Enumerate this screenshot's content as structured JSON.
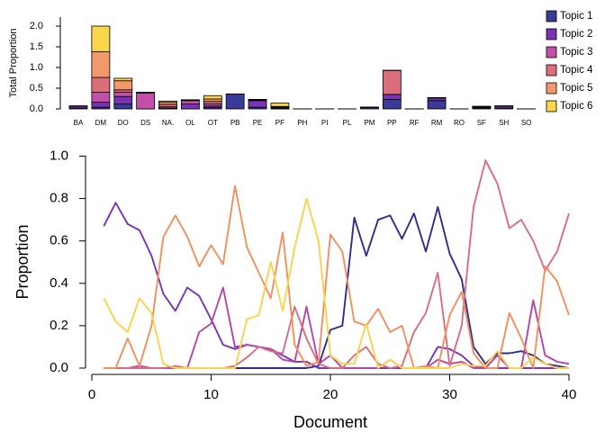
{
  "chart_data": [
    {
      "type": "bar",
      "stacked": true,
      "ylabel": "Total Proportion",
      "xlabel": "",
      "ylim": [
        0,
        2.2
      ],
      "yticks": [
        "0.0",
        "0.5",
        "1.0",
        "1.5",
        "2.0"
      ],
      "categories": [
        "BA",
        "DM",
        "DO",
        "DS",
        "NA.",
        "OL",
        "OT",
        "PB",
        "PE",
        "PF",
        "PH",
        "PI",
        "PL",
        "PM",
        "PP",
        "RF",
        "RM",
        "RO",
        "SF",
        "SH",
        "SO"
      ],
      "series": [
        {
          "name": "Topic 1",
          "color": "#3A3A98",
          "values": [
            0.02,
            0.04,
            0.12,
            0,
            0,
            0,
            0.03,
            0.36,
            0.04,
            0,
            0,
            0,
            0,
            0.03,
            0.23,
            0,
            0.2,
            0,
            0.02,
            0.02,
            0
          ]
        },
        {
          "name": "Topic 2",
          "color": "#7B33B5",
          "values": [
            0.05,
            0.12,
            0.18,
            0,
            0.02,
            0.12,
            0.04,
            0,
            0.16,
            0.01,
            0,
            0,
            0,
            0.01,
            0.12,
            0,
            0.06,
            0,
            0.02,
            0.05,
            0
          ]
        },
        {
          "name": "Topic 3",
          "color": "#C050A8",
          "values": [
            0,
            0.24,
            0.1,
            0.38,
            0.03,
            0.08,
            0.05,
            0,
            0.02,
            0.01,
            0,
            0,
            0,
            0,
            0,
            0,
            0.01,
            0,
            0.01,
            0,
            0
          ]
        },
        {
          "name": "Topic 4",
          "color": "#DC6E7C",
          "values": [
            0,
            0.36,
            0.06,
            0,
            0.06,
            0.02,
            0.06,
            0,
            0.01,
            0.02,
            0,
            0,
            0,
            0,
            0.58,
            0,
            0,
            0,
            0.01,
            0,
            0
          ]
        },
        {
          "name": "Topic 5",
          "color": "#F2996B",
          "values": [
            0,
            0.62,
            0.22,
            0.02,
            0.05,
            0,
            0.06,
            0,
            0,
            0.02,
            0,
            0,
            0,
            0,
            0,
            0,
            0,
            0,
            0,
            0,
            0
          ]
        },
        {
          "name": "Topic 6",
          "color": "#F9D64C",
          "values": [
            0,
            0.62,
            0.06,
            0,
            0.03,
            0,
            0.08,
            0,
            0,
            0.08,
            0,
            0,
            0,
            0,
            0,
            0,
            0,
            0,
            0,
            0,
            0
          ]
        }
      ]
    },
    {
      "type": "line",
      "xlabel": "Document",
      "ylabel": "Proportion",
      "xlim": [
        0,
        41
      ],
      "ylim": [
        0,
        1.03
      ],
      "xticks": [
        "0",
        "10",
        "20",
        "30",
        "40"
      ],
      "yticks": [
        "0.0",
        "0.2",
        "0.4",
        "0.6",
        "0.8",
        "1.0"
      ],
      "x": [
        1,
        2,
        3,
        4,
        5,
        6,
        7,
        8,
        9,
        10,
        11,
        12,
        13,
        14,
        15,
        16,
        17,
        18,
        19,
        20,
        21,
        22,
        23,
        24,
        25,
        26,
        27,
        28,
        29,
        30,
        31,
        32,
        33,
        34,
        35,
        36,
        37,
        38,
        39,
        40
      ],
      "series": [
        {
          "name": "Topic 1",
          "color": "#2E2E8C",
          "values": [
            0,
            0,
            0,
            0,
            0,
            0,
            0,
            0,
            0,
            0,
            0,
            0,
            0,
            0,
            0,
            0,
            0,
            0,
            0.01,
            0.18,
            0.2,
            0.71,
            0.53,
            0.7,
            0.72,
            0.61,
            0.73,
            0.55,
            0.76,
            0.54,
            0.42,
            0.1,
            0.02,
            0.07,
            0.07,
            0.08,
            0.06,
            0.02,
            0.01,
            0
          ]
        },
        {
          "name": "Topic 2",
          "color": "#7B33B5",
          "values": [
            0.67,
            0.78,
            0.68,
            0.65,
            0.53,
            0.35,
            0.27,
            0.38,
            0.34,
            0.23,
            0.11,
            0.09,
            0.11,
            0.1,
            0.09,
            0.06,
            0.03,
            0.03,
            0,
            0,
            0,
            0,
            0,
            0,
            0,
            0,
            0,
            0,
            0.1,
            0.09,
            0.06,
            0.01,
            0,
            0,
            0,
            0,
            0,
            0,
            0,
            0
          ]
        },
        {
          "name": "Topic 3",
          "color": "#B544A8",
          "values": [
            0,
            0,
            0,
            0.01,
            0,
            0,
            0,
            0,
            0.17,
            0.21,
            0.38,
            0.1,
            0.11,
            0.1,
            0.09,
            0.04,
            0.03,
            0.29,
            0.02,
            0.06,
            0,
            0,
            0,
            0,
            0.04,
            0,
            0,
            0,
            0.04,
            0.02,
            0.03,
            0,
            0,
            0.06,
            0,
            0,
            0.32,
            0.06,
            0.03,
            0.02
          ]
        },
        {
          "name": "Topic 4",
          "color": "#D66E80",
          "values": [
            0,
            0,
            0,
            0,
            0,
            0,
            0.01,
            0,
            0,
            0,
            0,
            0.01,
            0.05,
            0.1,
            0.08,
            0.07,
            0.29,
            0.14,
            0.02,
            0,
            0,
            0.06,
            0.1,
            0.02,
            0,
            0.01,
            0.17,
            0.26,
            0.45,
            0.01,
            0.2,
            0.76,
            0.98,
            0.87,
            0.66,
            0.7,
            0.6,
            0.46,
            0.55,
            0.73
          ]
        },
        {
          "name": "Topic 5",
          "color": "#F0905E",
          "values": [
            0,
            0,
            0.14,
            0.01,
            0.2,
            0.62,
            0.72,
            0.62,
            0.48,
            0.58,
            0.49,
            0.86,
            0.57,
            0.45,
            0.33,
            0.64,
            0.11,
            0.01,
            0.03,
            0.63,
            0.55,
            0.22,
            0.2,
            0.28,
            0.17,
            0.2,
            0,
            0.01,
            0,
            0.25,
            0.36,
            0.07,
            0,
            0,
            0.26,
            0.14,
            0,
            0.48,
            0.41,
            0.25
          ]
        },
        {
          "name": "Topic 6",
          "color": "#FAD24C",
          "values": [
            0.33,
            0.22,
            0.17,
            0.33,
            0.26,
            0.02,
            0,
            0,
            0,
            0,
            0,
            0,
            0.23,
            0.25,
            0.5,
            0.27,
            0.57,
            0.8,
            0.6,
            0.06,
            0.02,
            0.02,
            0.21,
            0,
            0.04,
            0,
            0,
            0,
            0,
            0,
            0.02,
            0.01,
            0.01,
            0.08,
            0,
            0,
            0.05,
            0.02,
            0,
            0
          ]
        }
      ]
    }
  ]
}
